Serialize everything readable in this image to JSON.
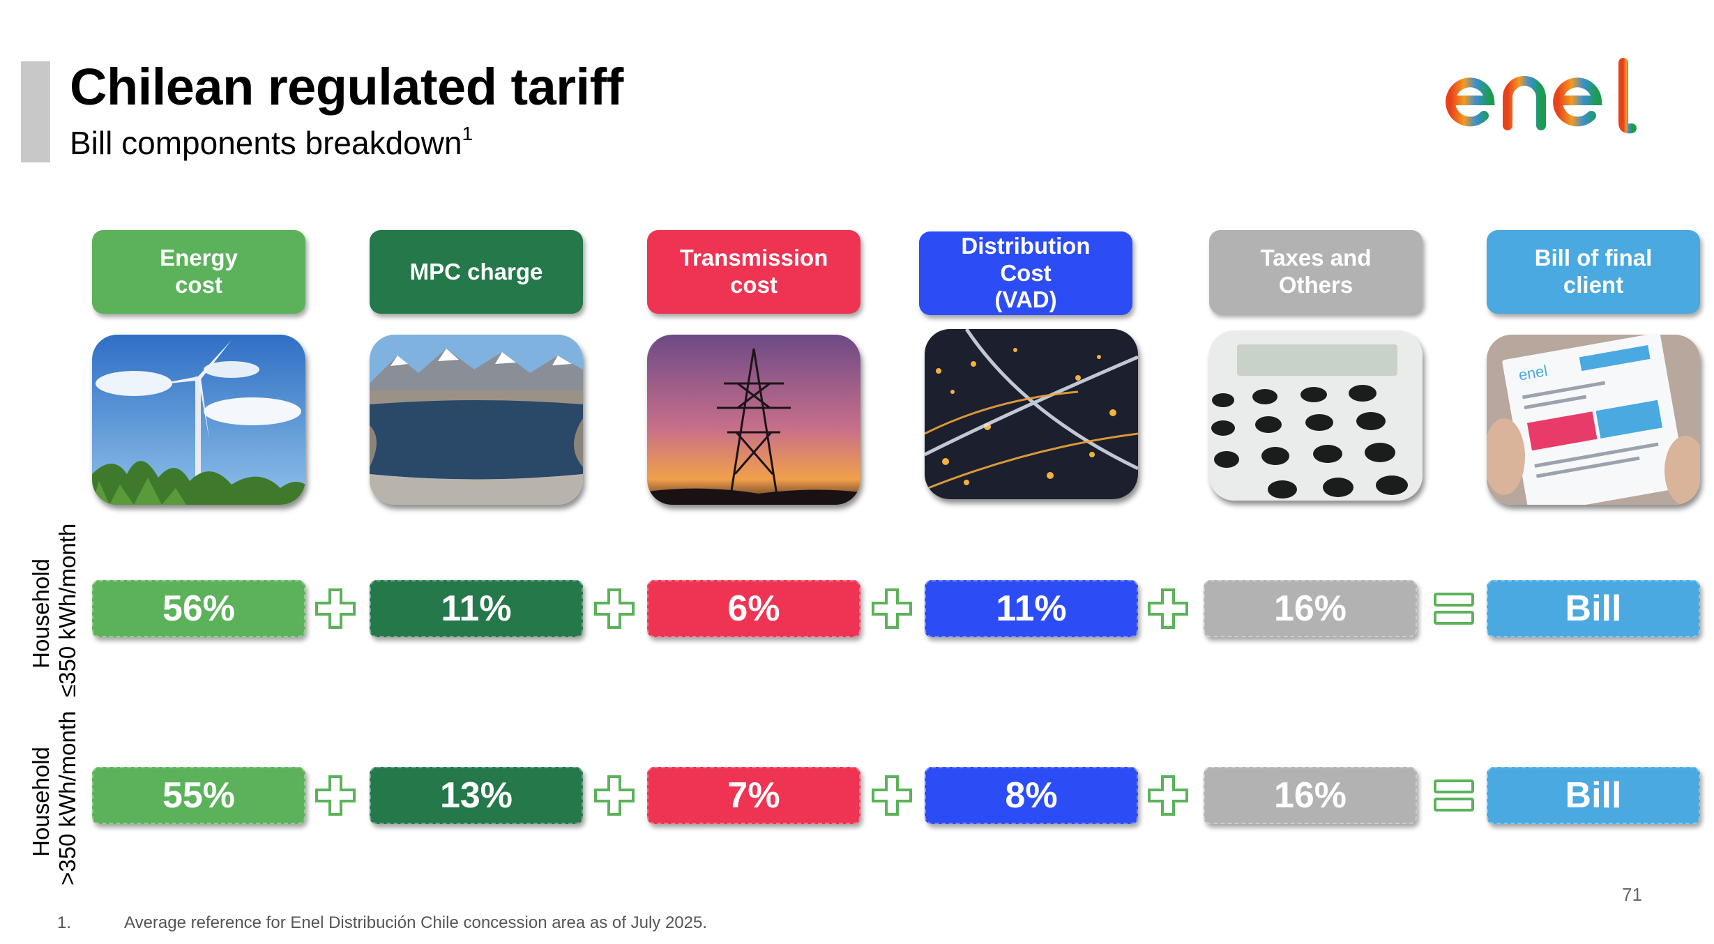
{
  "title": "Chilean regulated tariff",
  "subtitle": "Bill components breakdown",
  "subtitle_footnote_marker": "1",
  "logo": {
    "text": "enel",
    "colors": [
      "#e8411c",
      "#f29a1f",
      "#3a8fd2",
      "#1b9c4e"
    ]
  },
  "columns": [
    {
      "label": "Energy\ncost",
      "color": "#5cb25a",
      "image": "wind-turbine"
    },
    {
      "label": "MPC charge",
      "color": "#24784a",
      "image": "reservoir-mountains"
    },
    {
      "label": "Transmission\ncost",
      "color": "#ee3452",
      "image": "transmission-tower"
    },
    {
      "label": "Distribution\nCost\n(VAD)",
      "color": "#2c4df5",
      "image": "city-night"
    },
    {
      "label": "Taxes and\nOthers",
      "color": "#b2b2b2",
      "image": "calculator"
    },
    {
      "label": "Bill of final\nclient",
      "color": "#4aa9e0",
      "image": "bill-document"
    }
  ],
  "rows": [
    {
      "label_line1": "Household",
      "label_line2": "≤350 kWh/month",
      "values": [
        "56%",
        "11%",
        "6%",
        "11%",
        "16%",
        "Bill"
      ]
    },
    {
      "label_line1": "Household",
      "label_line2": ">350 kWh/month",
      "values": [
        "55%",
        "13%",
        "7%",
        "8%",
        "16%",
        "Bill"
      ]
    }
  ],
  "operators": [
    "plus",
    "plus",
    "plus",
    "plus",
    "equals"
  ],
  "footnote": {
    "number": "1.",
    "text": "Average reference for Enel Distribución Chile concession area as of July 2025."
  },
  "page_number": "71"
}
